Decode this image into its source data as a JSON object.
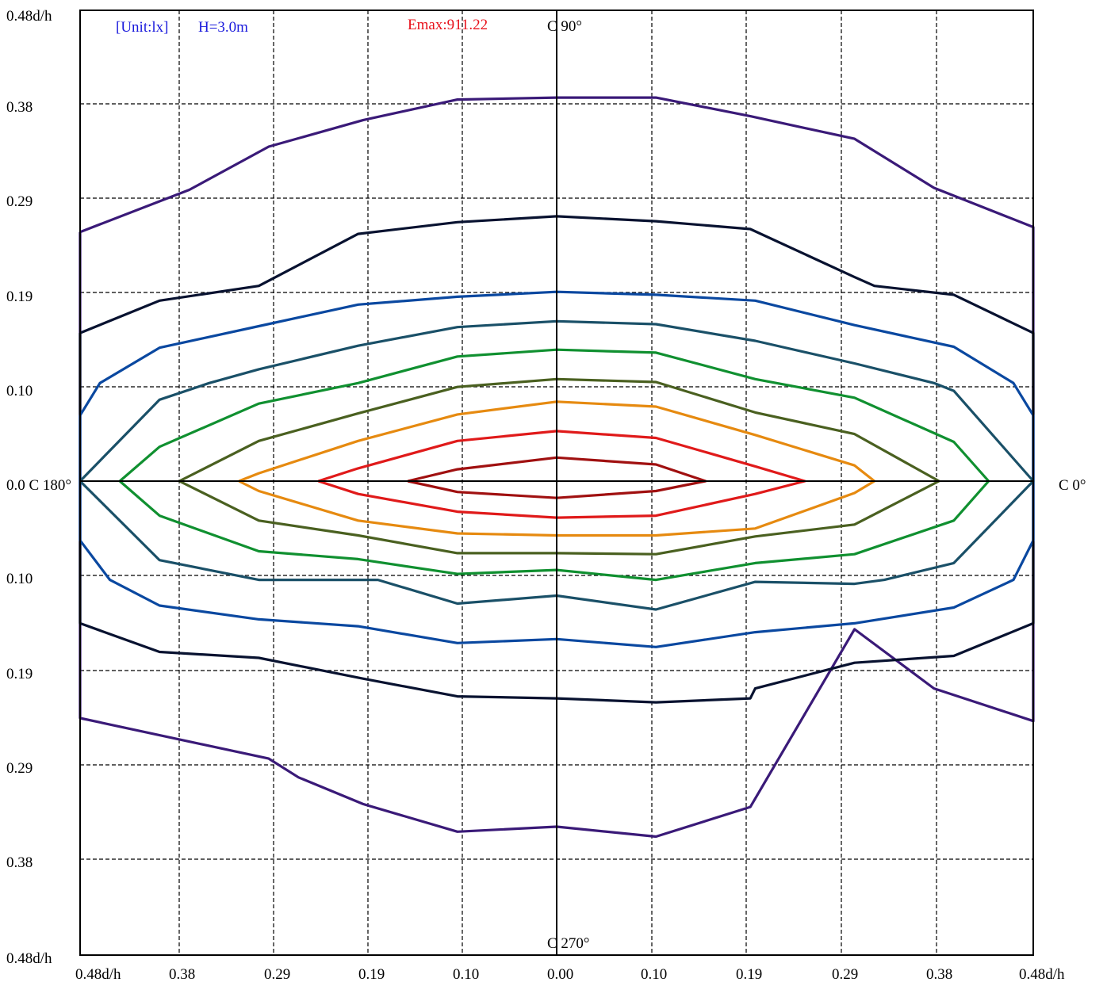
{
  "header": {
    "unit": "[Unit:lx]",
    "height": "H=3.0m",
    "emax": "Emax:911.22"
  },
  "colors": {
    "unit_text": "#1a1adc",
    "emax_text": "#e8101a"
  },
  "chart_data": {
    "type": "contour",
    "x_tick_labels": [
      "0.48d/h",
      "0.38",
      "0.29",
      "0.19",
      "0.10",
      "0.00",
      "0.10",
      "0.19",
      "0.29",
      "0.38",
      "0.48d/h"
    ],
    "y_tick_labels": [
      "0.48d/h",
      "0.38",
      "0.29",
      "0.19",
      "0.10",
      "0.0 C 180°",
      "0.10",
      "0.19",
      "0.29",
      "0.38",
      "0.48d/h"
    ],
    "axis_labels": {
      "c90": "C 90°",
      "c0": "C 0°",
      "c270": "C 270°"
    },
    "xlim": [
      -0.48,
      0.48
    ],
    "ylim": [
      -0.48,
      0.48
    ],
    "grid": true,
    "contours": [
      {
        "color": "#3a1a78",
        "points": [
          [
            -0.48,
            0.254
          ],
          [
            -0.37,
            0.297
          ],
          [
            -0.29,
            0.341
          ],
          [
            -0.195,
            0.368
          ],
          [
            -0.1,
            0.389
          ],
          [
            0,
            0.391
          ],
          [
            0.1,
            0.391
          ],
          [
            0.195,
            0.372
          ],
          [
            0.3,
            0.349
          ],
          [
            0.38,
            0.299
          ],
          [
            0.48,
            0.259
          ],
          [
            0.48,
            -0.243
          ],
          [
            0.38,
            -0.21
          ],
          [
            0.3,
            -0.15
          ],
          [
            0.195,
            -0.33
          ],
          [
            0.1,
            -0.36
          ],
          [
            0,
            -0.35
          ],
          [
            -0.1,
            -0.355
          ],
          [
            -0.195,
            -0.327
          ],
          [
            -0.26,
            -0.3
          ],
          [
            -0.29,
            -0.281
          ],
          [
            -0.48,
            -0.24
          ],
          [
            -0.48,
            0.254
          ]
        ]
      },
      {
        "color": "#081230",
        "points": [
          [
            -0.48,
            0.151
          ],
          [
            -0.4,
            0.184
          ],
          [
            -0.3,
            0.199
          ],
          [
            -0.2,
            0.252
          ],
          [
            -0.1,
            0.264
          ],
          [
            0,
            0.27
          ],
          [
            0.1,
            0.265
          ],
          [
            0.195,
            0.257
          ],
          [
            0.3,
            0.208
          ],
          [
            0.32,
            0.199
          ],
          [
            0.4,
            0.19
          ],
          [
            0.48,
            0.151
          ],
          [
            0.48,
            -0.144
          ],
          [
            0.4,
            -0.177
          ],
          [
            0.3,
            -0.184
          ],
          [
            0.2,
            -0.21
          ],
          [
            0.195,
            -0.22
          ],
          [
            0.1,
            -0.224
          ],
          [
            0,
            -0.22
          ],
          [
            -0.1,
            -0.218
          ],
          [
            -0.195,
            -0.2
          ],
          [
            -0.3,
            -0.179
          ],
          [
            -0.4,
            -0.173
          ],
          [
            -0.48,
            -0.144
          ],
          [
            -0.48,
            0.151
          ]
        ]
      },
      {
        "color": "#0a48a0",
        "points": [
          [
            -0.48,
            0.067
          ],
          [
            -0.46,
            0.1
          ],
          [
            -0.4,
            0.136
          ],
          [
            -0.3,
            0.158
          ],
          [
            -0.2,
            0.18
          ],
          [
            -0.1,
            0.188
          ],
          [
            0,
            0.193
          ],
          [
            0.1,
            0.19
          ],
          [
            0.2,
            0.184
          ],
          [
            0.3,
            0.159
          ],
          [
            0.4,
            0.137
          ],
          [
            0.46,
            0.1
          ],
          [
            0.48,
            0.067
          ],
          [
            0.48,
            -0.06
          ],
          [
            0.46,
            -0.1
          ],
          [
            0.4,
            -0.128
          ],
          [
            0.3,
            -0.144
          ],
          [
            0.2,
            -0.153
          ],
          [
            0.1,
            -0.168
          ],
          [
            0,
            -0.16
          ],
          [
            -0.1,
            -0.164
          ],
          [
            -0.2,
            -0.147
          ],
          [
            -0.3,
            -0.14
          ],
          [
            -0.4,
            -0.126
          ],
          [
            -0.45,
            -0.1
          ],
          [
            -0.48,
            -0.06
          ],
          [
            -0.48,
            0.067
          ]
        ]
      },
      {
        "color": "#1a5068",
        "points": [
          [
            -0.48,
            0.0
          ],
          [
            -0.4,
            0.083
          ],
          [
            -0.35,
            0.1
          ],
          [
            -0.3,
            0.114
          ],
          [
            -0.2,
            0.138
          ],
          [
            -0.1,
            0.157
          ],
          [
            0,
            0.163
          ],
          [
            0.1,
            0.16
          ],
          [
            0.2,
            0.143
          ],
          [
            0.3,
            0.12
          ],
          [
            0.38,
            0.1
          ],
          [
            0.4,
            0.092
          ],
          [
            0.48,
            0.0
          ],
          [
            0.48,
            0.0
          ],
          [
            0.4,
            -0.083
          ],
          [
            0.33,
            -0.1
          ],
          [
            0.3,
            -0.104
          ],
          [
            0.2,
            -0.102
          ],
          [
            0.1,
            -0.13
          ],
          [
            0,
            -0.116
          ],
          [
            -0.1,
            -0.124
          ],
          [
            -0.18,
            -0.1
          ],
          [
            -0.3,
            -0.1
          ],
          [
            -0.4,
            -0.08
          ],
          [
            -0.48,
            0.0
          ]
        ]
      },
      {
        "color": "#109030",
        "points": [
          [
            -0.44,
            0.0
          ],
          [
            -0.4,
            0.035
          ],
          [
            -0.3,
            0.079
          ],
          [
            -0.2,
            0.1
          ],
          [
            -0.1,
            0.127
          ],
          [
            0,
            0.134
          ],
          [
            0.1,
            0.131
          ],
          [
            0.2,
            0.104
          ],
          [
            0.3,
            0.085
          ],
          [
            0.4,
            0.04
          ],
          [
            0.435,
            0.0
          ],
          [
            0.4,
            -0.04
          ],
          [
            0.3,
            -0.074
          ],
          [
            0.2,
            -0.083
          ],
          [
            0.1,
            -0.1
          ],
          [
            0,
            -0.09
          ],
          [
            -0.1,
            -0.094
          ],
          [
            -0.2,
            -0.079
          ],
          [
            -0.3,
            -0.071
          ],
          [
            -0.4,
            -0.035
          ],
          [
            -0.44,
            0.0
          ]
        ]
      },
      {
        "color": "#4a6020",
        "points": [
          [
            -0.38,
            0.0
          ],
          [
            -0.3,
            0.041
          ],
          [
            -0.2,
            0.069
          ],
          [
            -0.1,
            0.096
          ],
          [
            0,
            0.104
          ],
          [
            0.1,
            0.101
          ],
          [
            0.2,
            0.07
          ],
          [
            0.3,
            0.048
          ],
          [
            0.385,
            0.0
          ],
          [
            0.3,
            -0.044
          ],
          [
            0.2,
            -0.056
          ],
          [
            0.1,
            -0.074
          ],
          [
            0,
            -0.073
          ],
          [
            -0.1,
            -0.073
          ],
          [
            -0.2,
            -0.055
          ],
          [
            -0.3,
            -0.04
          ],
          [
            -0.38,
            0.0
          ]
        ]
      },
      {
        "color": "#e68a10",
        "points": [
          [
            -0.32,
            0.0
          ],
          [
            -0.3,
            0.008
          ],
          [
            -0.2,
            0.041
          ],
          [
            -0.1,
            0.068
          ],
          [
            0,
            0.081
          ],
          [
            0.1,
            0.076
          ],
          [
            0.2,
            0.047
          ],
          [
            0.3,
            0.016
          ],
          [
            0.32,
            0.0
          ],
          [
            0.3,
            -0.012
          ],
          [
            0.2,
            -0.048
          ],
          [
            0.1,
            -0.055
          ],
          [
            0,
            -0.055
          ],
          [
            -0.1,
            -0.053
          ],
          [
            -0.2,
            -0.04
          ],
          [
            -0.3,
            -0.01
          ],
          [
            -0.32,
            0.0
          ]
        ]
      },
      {
        "color": "#e01a1a",
        "points": [
          [
            -0.24,
            0.0
          ],
          [
            -0.2,
            0.013
          ],
          [
            -0.1,
            0.041
          ],
          [
            0,
            0.051
          ],
          [
            0.1,
            0.044
          ],
          [
            0.2,
            0.015
          ],
          [
            0.25,
            0.0
          ],
          [
            0.2,
            -0.013
          ],
          [
            0.1,
            -0.035
          ],
          [
            0,
            -0.037
          ],
          [
            -0.1,
            -0.031
          ],
          [
            -0.2,
            -0.013
          ],
          [
            -0.24,
            0.0
          ]
        ]
      },
      {
        "color": "#a01010",
        "points": [
          [
            -0.15,
            0.0
          ],
          [
            -0.1,
            0.012
          ],
          [
            0,
            0.024
          ],
          [
            0.1,
            0.017
          ],
          [
            0.15,
            0.0
          ],
          [
            0.1,
            -0.01
          ],
          [
            0,
            -0.017
          ],
          [
            -0.1,
            -0.011
          ],
          [
            -0.15,
            0.0
          ]
        ]
      }
    ]
  }
}
